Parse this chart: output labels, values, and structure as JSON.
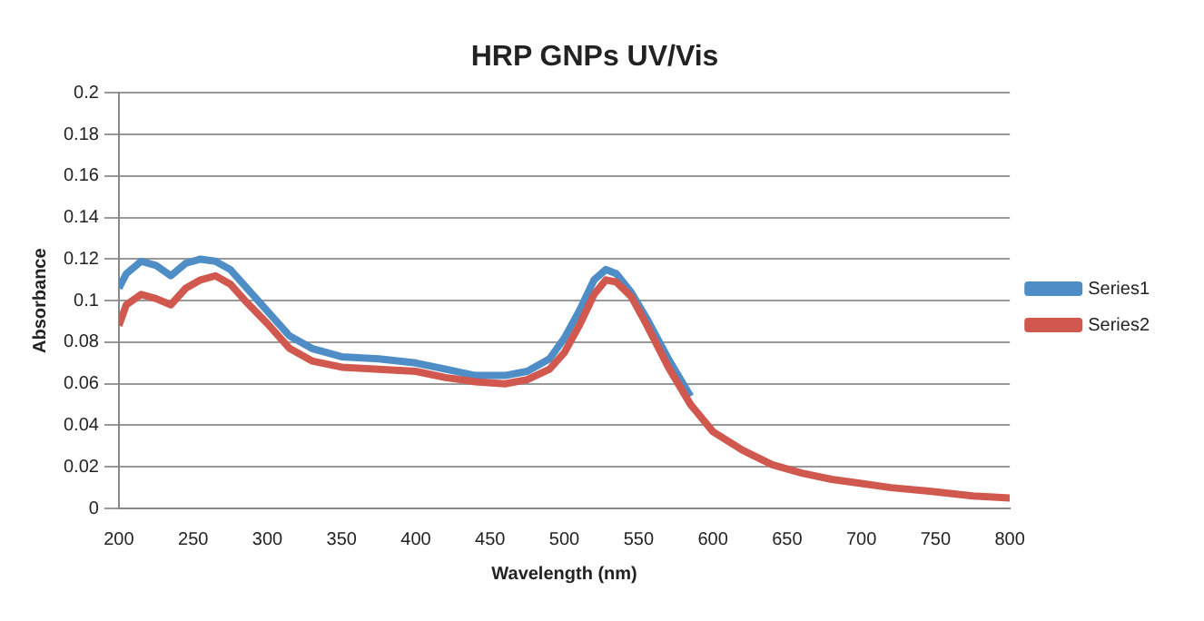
{
  "chart_data": {
    "type": "line",
    "title": "HRP GNPs UV/Vis",
    "xlabel": "Wavelength (nm)",
    "ylabel": "Absorbance",
    "x": [
      200,
      205,
      215,
      225,
      235,
      245,
      255,
      265,
      275,
      285,
      300,
      315,
      330,
      350,
      375,
      400,
      420,
      440,
      460,
      475,
      490,
      500,
      510,
      520,
      528,
      535,
      545,
      555,
      570,
      585,
      600,
      620,
      640,
      660,
      680,
      700,
      720,
      750,
      775,
      800
    ],
    "series": [
      {
        "name": "Series1",
        "color": "#4f8dc6",
        "values": [
          0.106,
          0.113,
          0.119,
          0.117,
          0.112,
          0.118,
          0.12,
          0.119,
          0.115,
          0.107,
          0.095,
          0.083,
          0.077,
          0.073,
          0.072,
          0.07,
          0.067,
          0.064,
          0.064,
          0.066,
          0.072,
          0.082,
          0.095,
          0.11,
          0.115,
          0.113,
          0.104,
          0.092,
          0.072,
          0.054,
          null,
          null,
          null,
          null,
          null,
          null,
          null,
          null,
          null,
          null
        ]
      },
      {
        "name": "Series2",
        "color": "#d0584f",
        "values": [
          0.088,
          0.098,
          0.103,
          0.101,
          0.098,
          0.106,
          0.11,
          0.112,
          0.108,
          0.1,
          0.089,
          0.077,
          0.071,
          0.068,
          0.067,
          0.066,
          0.063,
          0.061,
          0.06,
          0.062,
          0.067,
          0.075,
          0.088,
          0.103,
          0.11,
          0.109,
          0.102,
          0.089,
          0.068,
          0.05,
          0.037,
          0.028,
          0.021,
          0.017,
          0.014,
          0.012,
          0.01,
          0.008,
          0.006,
          0.005
        ]
      }
    ],
    "xlim": [
      200,
      800
    ],
    "xticks": [
      200,
      250,
      300,
      350,
      400,
      450,
      500,
      550,
      600,
      650,
      700,
      750,
      800
    ],
    "ylim": [
      0,
      0.2
    ],
    "yticks": [
      0,
      0.02,
      0.04,
      0.06,
      0.08,
      0.1,
      0.12,
      0.14,
      0.16,
      0.18,
      0.2
    ],
    "grid": "y",
    "legend": "right",
    "marker": "none",
    "line_style": "solid"
  }
}
